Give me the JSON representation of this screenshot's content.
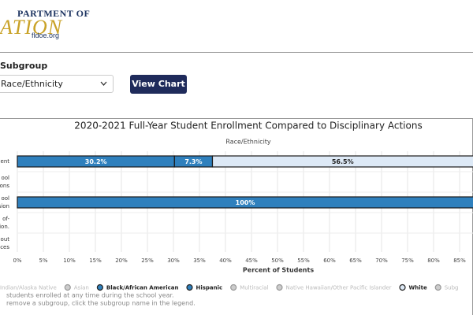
{
  "header": {
    "logo_top": "PARTMENT OF",
    "logo_main": "ATION",
    "logo_site": "fldoe.org"
  },
  "form": {
    "label": "Subgroup",
    "select_value": "Race/Ethnicity",
    "button": "View Chart"
  },
  "chart_data": {
    "type": "stacked-bar-horizontal",
    "title": "2020-2021 Full-Year Student Enrollment Compared to Disciplinary Actions",
    "subtitle": "Race/Ethnicity",
    "x_label": "Percent of Students",
    "categories": [
      [
        "ment"
      ],
      [
        "ool",
        "ions"
      ],
      [
        "ool",
        "sion"
      ],
      [
        "of-",
        "sion."
      ],
      [
        "out",
        "ces"
      ]
    ],
    "xlim": [
      0,
      100
    ],
    "xticks": [
      {
        "value": 0,
        "label": "0%"
      },
      {
        "value": 5,
        "label": "5%"
      },
      {
        "value": 10,
        "label": "10%"
      },
      {
        "value": 15,
        "label": "15%"
      },
      {
        "value": 20,
        "label": "20%"
      },
      {
        "value": 25,
        "label": "25%"
      },
      {
        "value": 30,
        "label": "30%"
      },
      {
        "value": 35,
        "label": "35%"
      },
      {
        "value": 40,
        "label": "40%"
      },
      {
        "value": 45,
        "label": "45%"
      },
      {
        "value": 50,
        "label": "50%"
      },
      {
        "value": 55,
        "label": "55%"
      },
      {
        "value": 60,
        "label": "60%"
      },
      {
        "value": 65,
        "label": "65%"
      },
      {
        "value": 70,
        "label": "70%"
      },
      {
        "value": 75,
        "label": "75%"
      },
      {
        "value": 80,
        "label": "80%"
      },
      {
        "value": 85,
        "label": "85%"
      }
    ],
    "grid": true,
    "series": [
      {
        "name": "Indian/Alaska Native",
        "color": "#bbbbbb",
        "hidden": true,
        "values": [
          null,
          null,
          null,
          null,
          null
        ]
      },
      {
        "name": "Asian",
        "color": "#bbbbbb",
        "hidden": true,
        "values": [
          null,
          null,
          null,
          null,
          null
        ]
      },
      {
        "name": "Black/African American",
        "color": "#2f80bd",
        "values": [
          30.2,
          null,
          100,
          null,
          null
        ],
        "value_labels": [
          "30.2%",
          null,
          "100%",
          null,
          null
        ]
      },
      {
        "name": "Hispanic",
        "color": "#2f80bd",
        "values": [
          7.3,
          null,
          null,
          null,
          null
        ],
        "value_labels": [
          "7.3%",
          null,
          null,
          null,
          null
        ]
      },
      {
        "name": "Multiracial",
        "color": "#bbbbbb",
        "hidden": true,
        "values": [
          null,
          null,
          null,
          null,
          null
        ]
      },
      {
        "name": "Native Hawaiian/Other Pacific Islander",
        "color": "#bbbbbb",
        "hidden": true,
        "values": [
          null,
          null,
          null,
          null,
          null
        ]
      },
      {
        "name": "White",
        "color": "#dde9f6",
        "values": [
          56.5,
          null,
          null,
          null,
          null
        ],
        "value_labels": [
          "56.5%",
          null,
          null,
          null,
          null
        ]
      },
      {
        "name": "Subg",
        "color": "#bbbbbb",
        "hidden": true,
        "values": [
          null,
          null,
          null,
          null,
          null
        ]
      }
    ],
    "notes": [
      "students enrolled at any time during the school year.",
      "remove a subgroup, click the subgroup name in the legend."
    ]
  }
}
